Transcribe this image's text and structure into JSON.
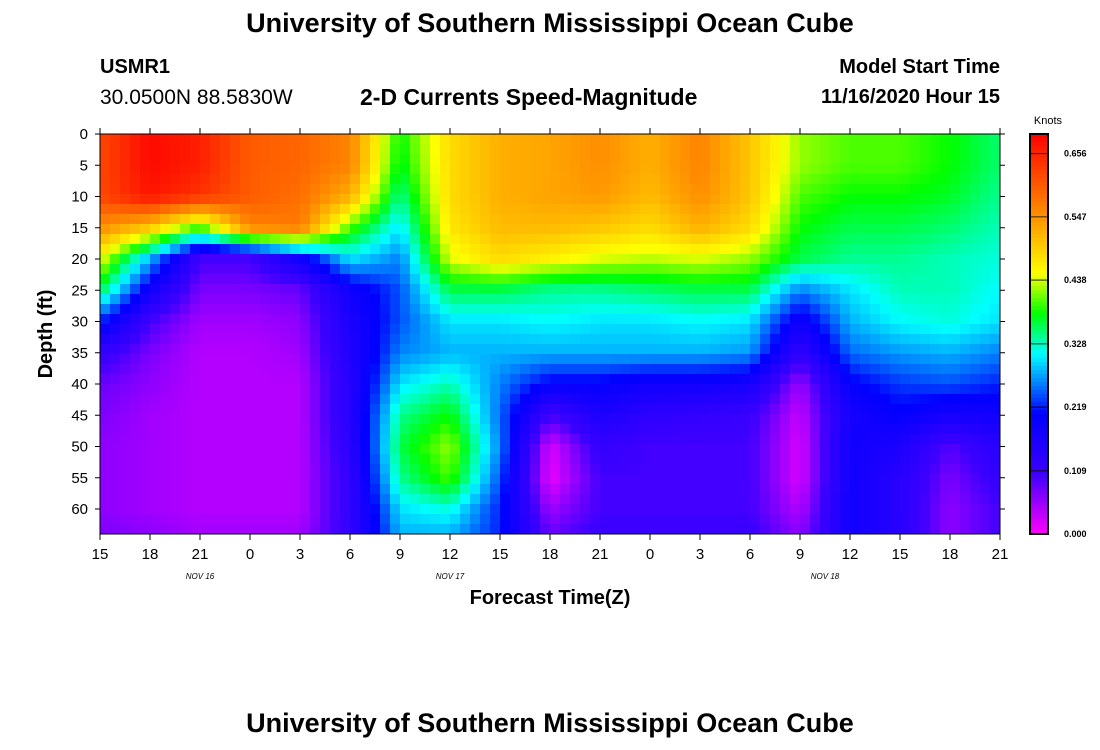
{
  "header": {
    "title": "University of Southern Mississippi Ocean Cube",
    "station": "USMR1",
    "coords": "30.0500N 88.5830W",
    "subtitle": "2-D Currents Speed-Magnitude",
    "model_start_label": "Model Start Time",
    "model_start_value": "11/16/2020 Hour 15"
  },
  "footer": {
    "title": "University of Southern Mississippi Ocean Cube"
  },
  "chart_data": {
    "type": "heatmap",
    "xlabel": "Forecast Time(Z)",
    "ylabel": "Depth (ft)",
    "x_tick_labels": [
      "15",
      "18",
      "21",
      "0",
      "3",
      "6",
      "9",
      "12",
      "15",
      "18",
      "21",
      "0",
      "3",
      "6",
      "9",
      "12",
      "15",
      "18",
      "21"
    ],
    "x_date_labels": [
      {
        "label": "NOV 16",
        "tick_index": 2
      },
      {
        "label": "NOV 17",
        "tick_index": 7
      },
      {
        "label": "NOV 18",
        "tick_index": 14.5
      }
    ],
    "y_ticks": [
      0,
      5,
      10,
      15,
      20,
      25,
      30,
      35,
      40,
      45,
      50,
      55,
      60
    ],
    "y_range": [
      0,
      64
    ],
    "x_hours_range": [
      0,
      54
    ],
    "colorbar": {
      "unit": "Knots",
      "ticks": [
        "0.000",
        "0.109",
        "0.219",
        "0.328",
        "0.438",
        "0.547",
        "0.656"
      ],
      "range": [
        0,
        0.69
      ]
    },
    "grid_x_hours": [
      0,
      3,
      6,
      9,
      12,
      15,
      18,
      21,
      24,
      27,
      30,
      33,
      36,
      39,
      42,
      45,
      48,
      51,
      54
    ],
    "grid_depths": [
      0,
      5,
      10,
      15,
      20,
      25,
      30,
      35,
      40,
      45,
      50,
      55,
      60,
      64
    ],
    "values": [
      [
        0.62,
        0.68,
        0.66,
        0.6,
        0.59,
        0.56,
        0.38,
        0.48,
        0.52,
        0.53,
        0.55,
        0.52,
        0.56,
        0.5,
        0.42,
        0.4,
        0.4,
        0.38,
        0.35
      ],
      [
        0.62,
        0.68,
        0.66,
        0.6,
        0.59,
        0.56,
        0.37,
        0.48,
        0.52,
        0.53,
        0.55,
        0.52,
        0.56,
        0.5,
        0.42,
        0.4,
        0.4,
        0.38,
        0.35
      ],
      [
        0.62,
        0.67,
        0.64,
        0.6,
        0.58,
        0.52,
        0.34,
        0.48,
        0.52,
        0.53,
        0.54,
        0.51,
        0.55,
        0.5,
        0.4,
        0.38,
        0.38,
        0.37,
        0.34
      ],
      [
        0.55,
        0.5,
        0.4,
        0.56,
        0.57,
        0.4,
        0.3,
        0.47,
        0.51,
        0.51,
        0.5,
        0.48,
        0.52,
        0.48,
        0.38,
        0.36,
        0.36,
        0.35,
        0.33
      ],
      [
        0.45,
        0.28,
        0.1,
        0.1,
        0.18,
        0.3,
        0.26,
        0.44,
        0.48,
        0.46,
        0.44,
        0.43,
        0.44,
        0.42,
        0.36,
        0.34,
        0.34,
        0.33,
        0.32
      ],
      [
        0.36,
        0.18,
        0.07,
        0.07,
        0.08,
        0.18,
        0.24,
        0.36,
        0.36,
        0.34,
        0.34,
        0.35,
        0.36,
        0.36,
        0.26,
        0.3,
        0.33,
        0.33,
        0.31
      ],
      [
        0.22,
        0.1,
        0.05,
        0.05,
        0.06,
        0.16,
        0.24,
        0.3,
        0.3,
        0.31,
        0.3,
        0.3,
        0.31,
        0.3,
        0.18,
        0.28,
        0.31,
        0.32,
        0.3
      ],
      [
        0.12,
        0.07,
        0.04,
        0.04,
        0.05,
        0.15,
        0.26,
        0.28,
        0.28,
        0.28,
        0.28,
        0.28,
        0.28,
        0.27,
        0.12,
        0.25,
        0.27,
        0.28,
        0.26
      ],
      [
        0.08,
        0.06,
        0.04,
        0.04,
        0.04,
        0.14,
        0.3,
        0.33,
        0.26,
        0.2,
        0.2,
        0.18,
        0.18,
        0.17,
        0.05,
        0.2,
        0.23,
        0.24,
        0.22
      ],
      [
        0.07,
        0.05,
        0.04,
        0.04,
        0.04,
        0.14,
        0.34,
        0.38,
        0.25,
        0.1,
        0.16,
        0.13,
        0.12,
        0.11,
        0.03,
        0.17,
        0.2,
        0.17,
        0.18
      ],
      [
        0.06,
        0.05,
        0.04,
        0.04,
        0.04,
        0.13,
        0.36,
        0.42,
        0.26,
        0.02,
        0.12,
        0.1,
        0.1,
        0.1,
        0.02,
        0.18,
        0.16,
        0.09,
        0.14
      ],
      [
        0.06,
        0.05,
        0.04,
        0.04,
        0.04,
        0.12,
        0.34,
        0.4,
        0.24,
        0.01,
        0.1,
        0.1,
        0.1,
        0.1,
        0.02,
        0.18,
        0.14,
        0.07,
        0.12
      ],
      [
        0.06,
        0.05,
        0.04,
        0.04,
        0.04,
        0.12,
        0.3,
        0.32,
        0.22,
        0.05,
        0.1,
        0.1,
        0.1,
        0.1,
        0.04,
        0.18,
        0.14,
        0.06,
        0.1
      ],
      [
        0.07,
        0.06,
        0.05,
        0.05,
        0.05,
        0.12,
        0.28,
        0.28,
        0.22,
        0.08,
        0.11,
        0.11,
        0.11,
        0.11,
        0.06,
        0.18,
        0.14,
        0.06,
        0.1
      ]
    ]
  }
}
